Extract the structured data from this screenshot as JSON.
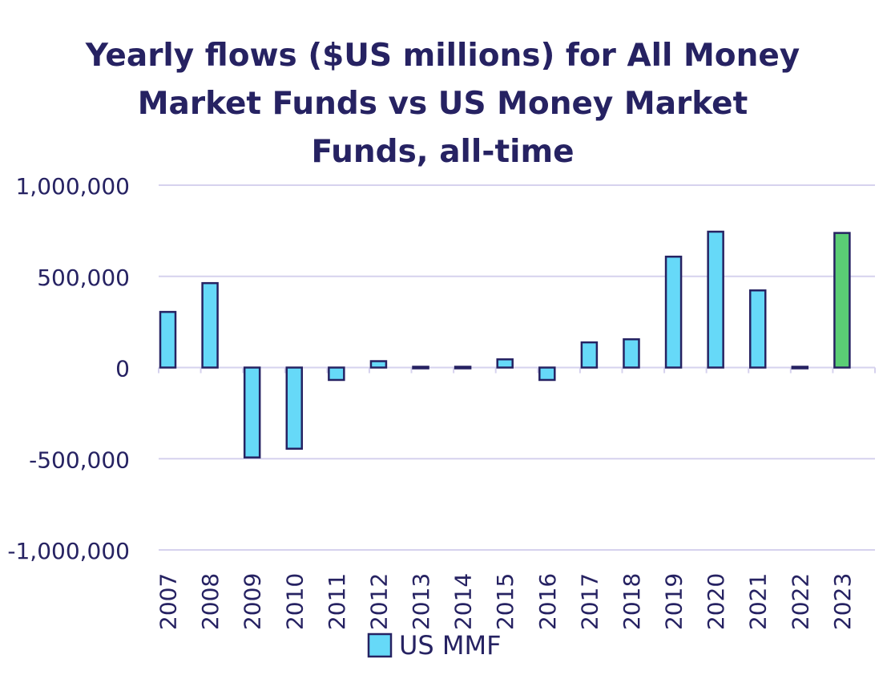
{
  "chart_data": {
    "type": "bar",
    "title_lines": [
      "Yearly flows ($US millions) for All Money",
      "Market Funds vs US  Money Market",
      "Funds, all-time"
    ],
    "categories": [
      "2007",
      "2008",
      "2009",
      "2010",
      "2011",
      "2012",
      "2013",
      "2014",
      "2015",
      "2016",
      "2017",
      "2018",
      "2019",
      "2020",
      "2021",
      "2022",
      "2023"
    ],
    "series": [
      {
        "name": "US MMF",
        "values": [
          305000,
          463000,
          -493000,
          -445000,
          -68000,
          35000,
          3000,
          3000,
          45000,
          -68000,
          138000,
          155000,
          608000,
          745000,
          423000,
          5000,
          738000
        ]
      }
    ],
    "ylim": [
      -1000000,
      1000000
    ],
    "yticks": [
      1000000,
      500000,
      0,
      -500000,
      -1000000
    ],
    "ytick_labels": [
      "1,000,000",
      "500,000",
      "0",
      "-500,000",
      "-1,000,000"
    ],
    "grid": true,
    "legend_position": "bottom",
    "highlight_category": "2023",
    "colors": {
      "bar_fill": "#66D9F8",
      "highlight_fill": "#5ACD75",
      "bar_stroke": "#262262",
      "grid": "#D6D2EE",
      "axis_text": "#262262",
      "title": "#262262"
    }
  }
}
